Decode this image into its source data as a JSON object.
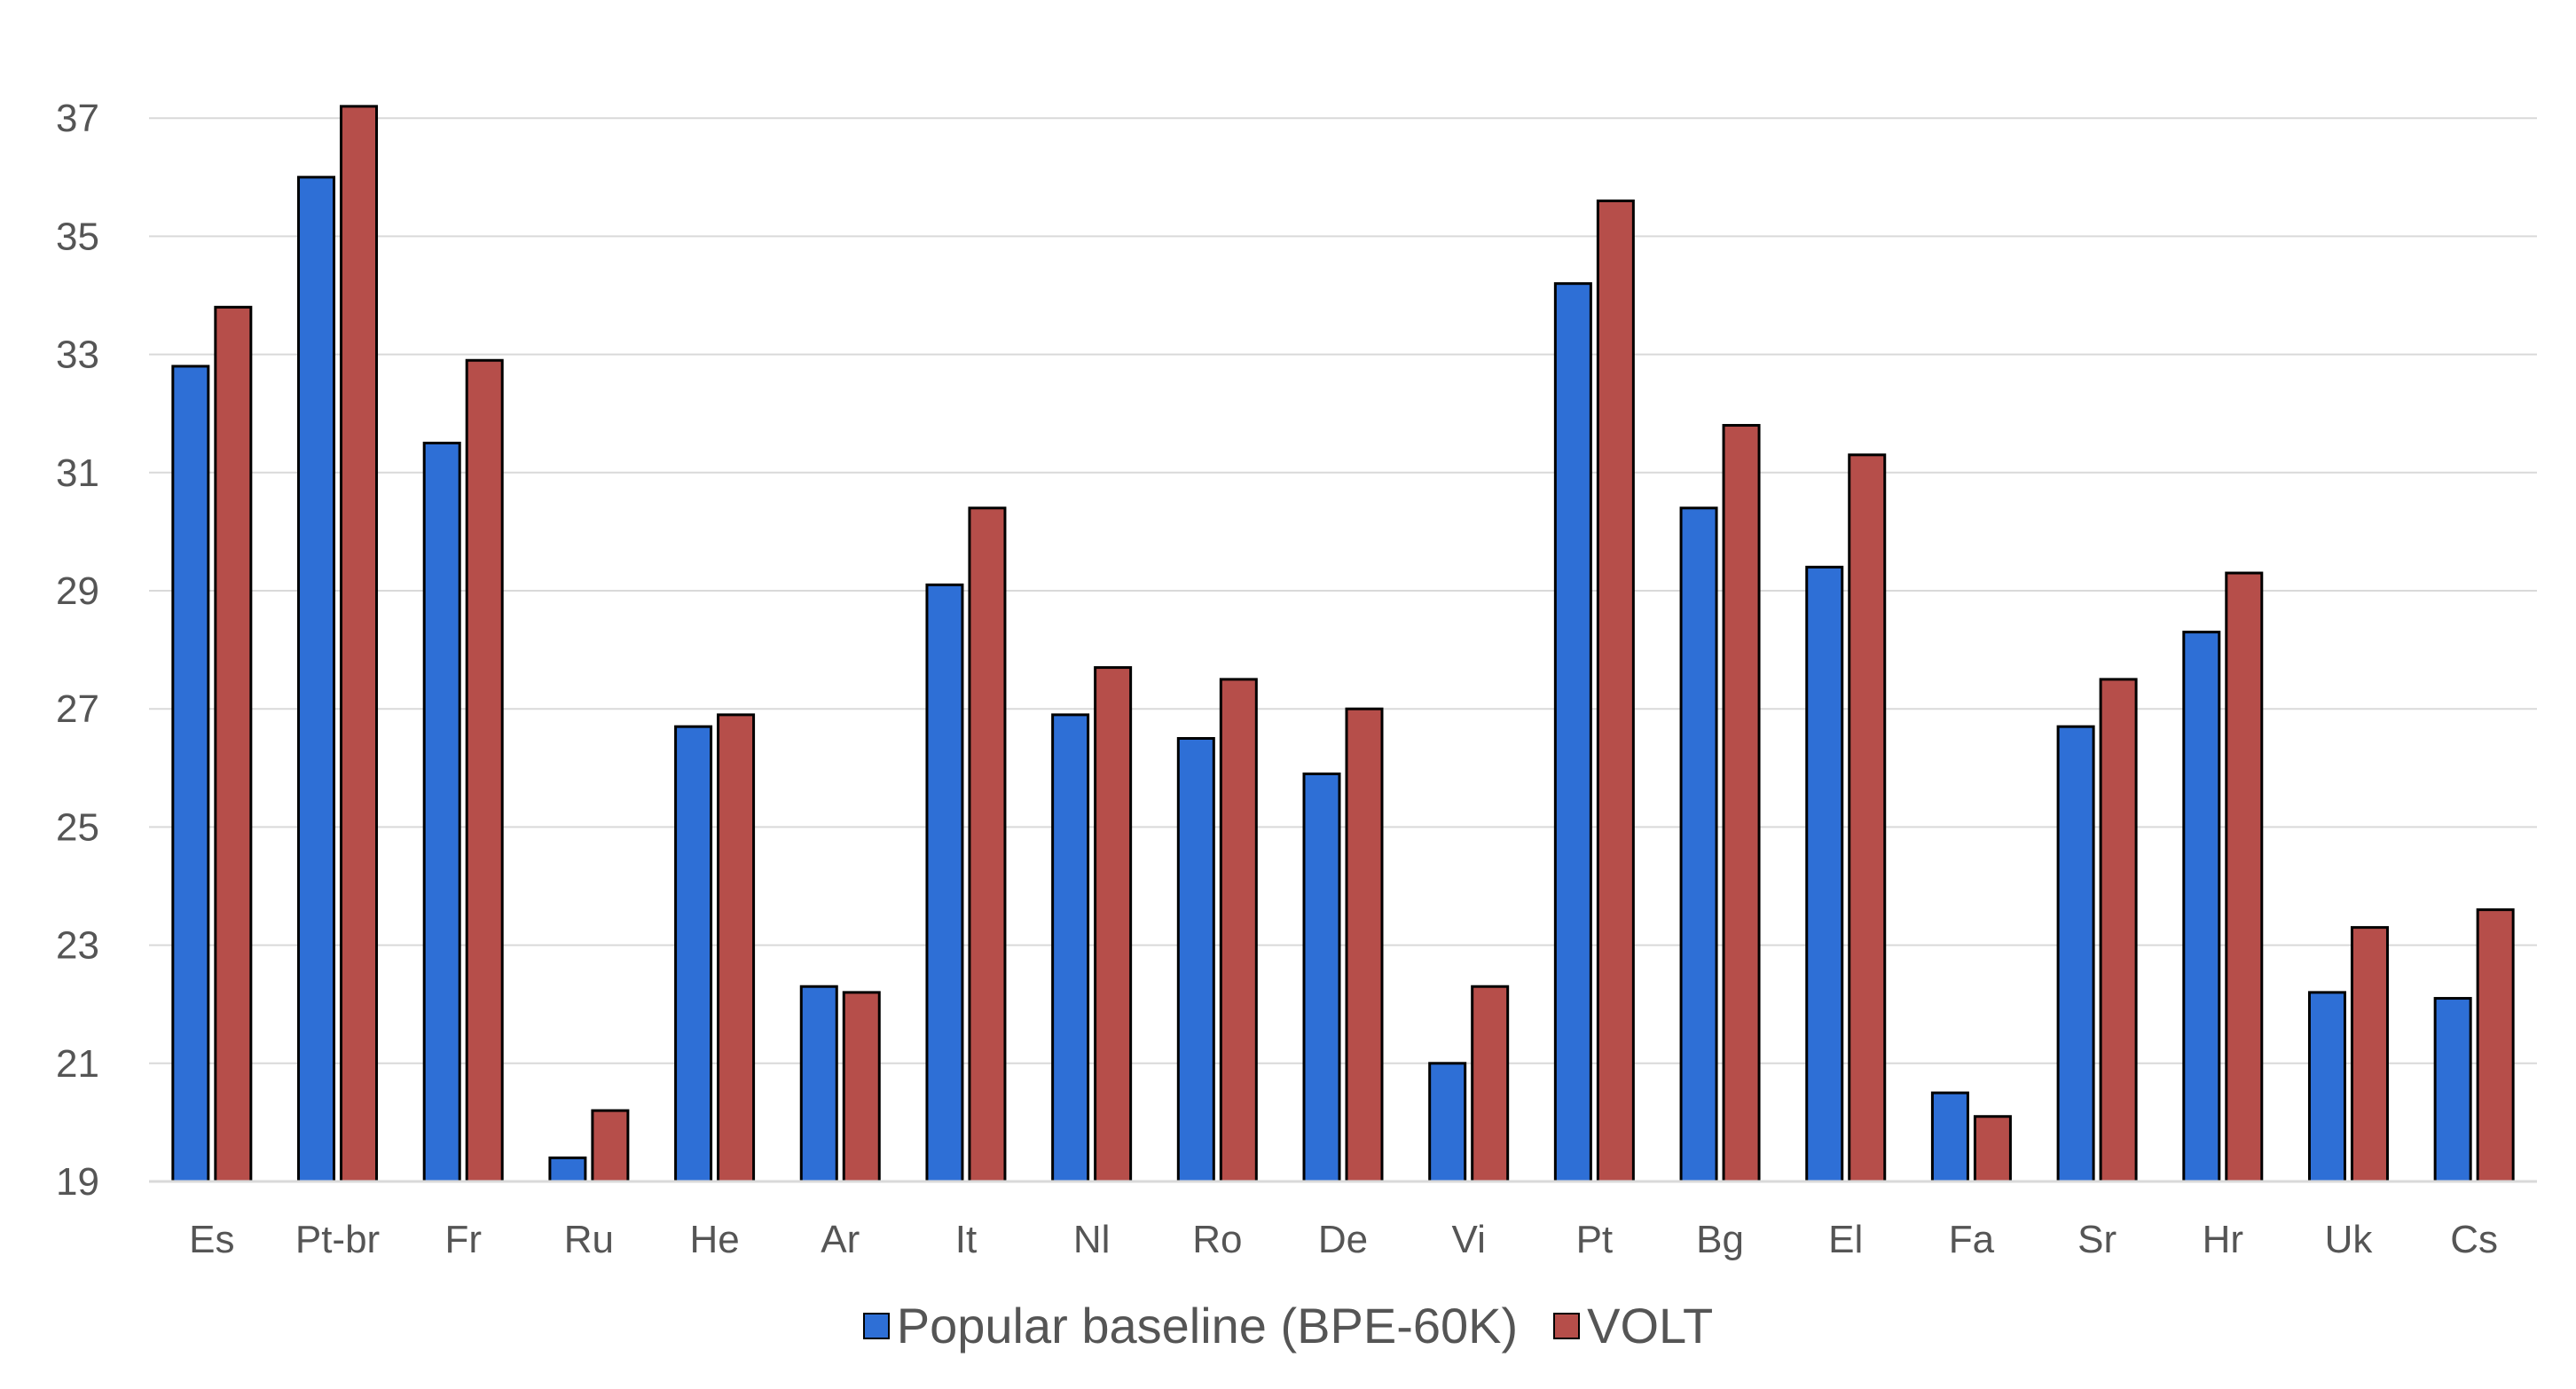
{
  "chart_data": {
    "type": "bar",
    "title": "",
    "xlabel": "",
    "ylabel": "",
    "ylim": [
      19,
      38
    ],
    "yticks": [
      19,
      21,
      23,
      25,
      27,
      29,
      31,
      33,
      35,
      37
    ],
    "grid": "horizontal",
    "legend_position": "bottom",
    "categories": [
      "Es",
      "Pt-br",
      "Fr",
      "Ru",
      "He",
      "Ar",
      "It",
      "Nl",
      "Ro",
      "De",
      "Vi",
      "Pt",
      "Bg",
      "El",
      "Fa",
      "Sr",
      "Hr",
      "Uk",
      "Cs"
    ],
    "series": [
      {
        "name": "Popular baseline (BPE-60K)",
        "color": "#2e6fd6",
        "values": [
          32.8,
          36.0,
          31.5,
          19.4,
          26.7,
          22.3,
          29.1,
          26.9,
          26.5,
          25.9,
          21.0,
          34.2,
          30.4,
          29.4,
          20.5,
          26.7,
          28.3,
          22.2,
          22.1
        ]
      },
      {
        "name": "VOLT",
        "color": "#b64e4a",
        "values": [
          33.8,
          37.2,
          32.9,
          20.2,
          26.9,
          22.2,
          30.4,
          27.7,
          27.5,
          27.0,
          22.3,
          35.6,
          31.8,
          31.3,
          20.1,
          27.5,
          29.3,
          23.3,
          23.6
        ]
      }
    ]
  }
}
